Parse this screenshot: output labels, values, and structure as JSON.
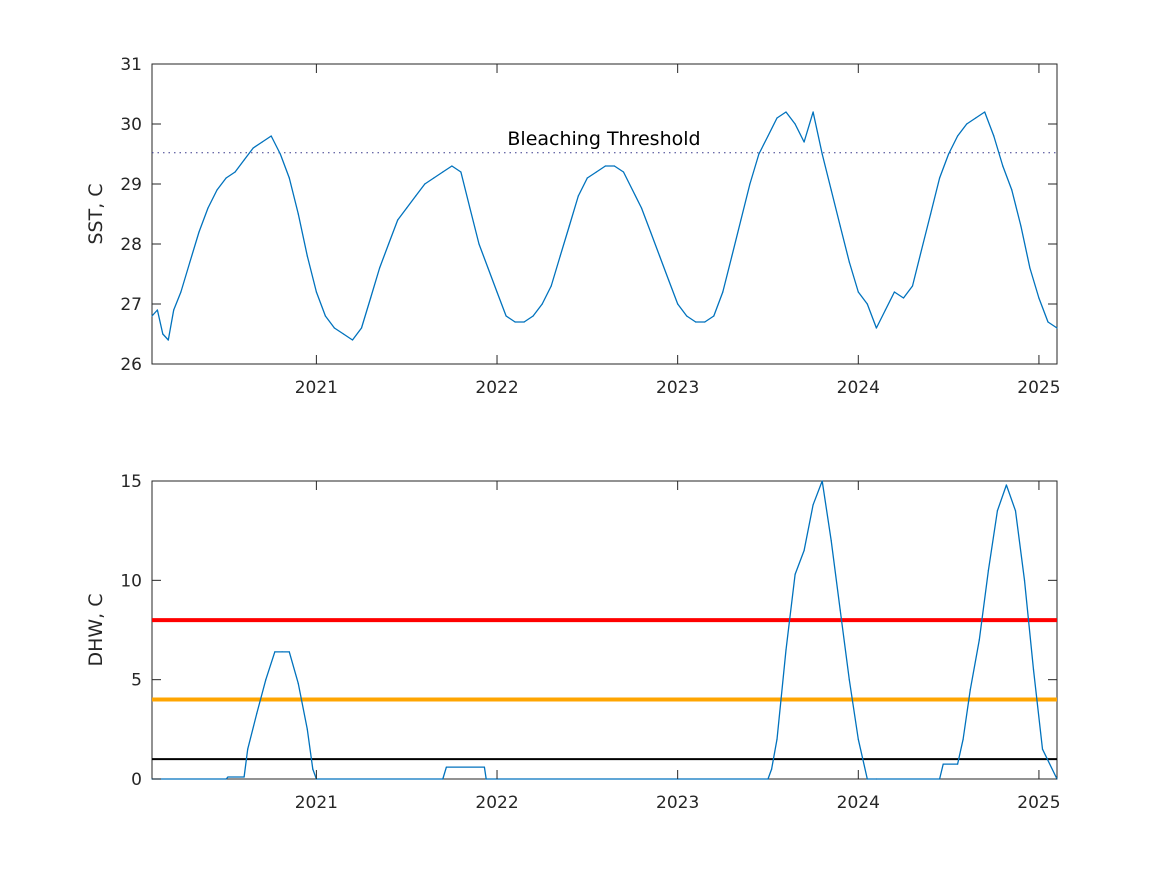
{
  "colors": {
    "sst_line": "#0072BD",
    "dhw_line": "#0072BD",
    "threshold_dotted": "#3a3a8c",
    "alert_level_2": "#ff0000",
    "alert_level_1": "#ffa500",
    "watch_level": "#000000",
    "axis": "#262626",
    "background": "#ffffff"
  },
  "chart_data": [
    {
      "type": "line",
      "ylabel": "SST, C",
      "xlabel": "",
      "xlim": [
        2020.09,
        2025.1
      ],
      "ylim": [
        26,
        31
      ],
      "x_ticks": [
        "2021",
        "2022",
        "2023",
        "2024",
        "2025"
      ],
      "y_ticks": [
        "26",
        "27",
        "28",
        "29",
        "30",
        "31"
      ],
      "annotations": [
        {
          "text": "Bleaching Threshold",
          "y": 29.52,
          "style": "dotted"
        }
      ],
      "series": [
        {
          "x": [
            2020.09,
            2020.12,
            2020.15,
            2020.18,
            2020.21,
            2020.25,
            2020.3,
            2020.35,
            2020.4,
            2020.45,
            2020.5,
            2020.55,
            2020.6,
            2020.65,
            2020.7,
            2020.75,
            2020.8,
            2020.85,
            2020.9,
            2020.95,
            2021.0,
            2021.05,
            2021.1,
            2021.15,
            2021.2,
            2021.25,
            2021.3,
            2021.35,
            2021.4,
            2021.45,
            2021.5,
            2021.55,
            2021.6,
            2021.65,
            2021.7,
            2021.75,
            2021.8,
            2021.85,
            2021.9,
            2021.95,
            2022.0,
            2022.05,
            2022.1,
            2022.15,
            2022.2,
            2022.25,
            2022.3,
            2022.35,
            2022.4,
            2022.45,
            2022.5,
            2022.55,
            2022.6,
            2022.65,
            2022.7,
            2022.75,
            2022.8,
            2022.85,
            2022.9,
            2022.95,
            2023.0,
            2023.05,
            2023.1,
            2023.15,
            2023.2,
            2023.25,
            2023.3,
            2023.35,
            2023.4,
            2023.45,
            2023.5,
            2023.55,
            2023.6,
            2023.65,
            2023.7,
            2023.75,
            2023.8,
            2023.85,
            2023.9,
            2023.95,
            2024.0,
            2024.05,
            2024.1,
            2024.15,
            2024.2,
            2024.25,
            2024.3,
            2024.35,
            2024.4,
            2024.45,
            2024.5,
            2024.55,
            2024.6,
            2024.65,
            2024.7,
            2024.75,
            2024.8,
            2024.85,
            2024.9,
            2024.95,
            2025.0,
            2025.05,
            2025.1
          ],
          "values": [
            26.8,
            26.9,
            26.5,
            26.4,
            26.9,
            27.2,
            27.7,
            28.2,
            28.6,
            28.9,
            29.1,
            29.2,
            29.4,
            29.6,
            29.7,
            29.8,
            29.5,
            29.1,
            28.5,
            27.8,
            27.2,
            26.8,
            26.6,
            26.5,
            26.4,
            26.6,
            27.1,
            27.6,
            28.0,
            28.4,
            28.6,
            28.8,
            29.0,
            29.1,
            29.2,
            29.3,
            29.2,
            28.6,
            28.0,
            27.6,
            27.2,
            26.8,
            26.7,
            26.7,
            26.8,
            27.0,
            27.3,
            27.8,
            28.3,
            28.8,
            29.1,
            29.2,
            29.3,
            29.3,
            29.2,
            28.9,
            28.6,
            28.2,
            27.8,
            27.4,
            27.0,
            26.8,
            26.7,
            26.7,
            26.8,
            27.2,
            27.8,
            28.4,
            29.0,
            29.5,
            29.8,
            30.1,
            30.2,
            30.0,
            29.7,
            30.2,
            29.5,
            28.9,
            28.3,
            27.7,
            27.2,
            27.0,
            26.6,
            26.9,
            27.2,
            27.1,
            27.3,
            27.9,
            28.5,
            29.1,
            29.5,
            29.8,
            30.0,
            30.1,
            30.2,
            29.8,
            29.3,
            28.9,
            28.3,
            27.6,
            27.1,
            26.7,
            26.6
          ]
        }
      ]
    },
    {
      "type": "line",
      "ylabel": "DHW, C",
      "xlabel": "",
      "xlim": [
        2020.09,
        2025.1
      ],
      "ylim": [
        0,
        15
      ],
      "x_ticks": [
        "2021",
        "2022",
        "2023",
        "2024",
        "2025"
      ],
      "y_ticks": [
        "0",
        "5",
        "10",
        "15"
      ],
      "reference_lines": [
        {
          "y": 8,
          "color": "red"
        },
        {
          "y": 4,
          "color": "orange"
        },
        {
          "y": 1,
          "color": "black"
        }
      ],
      "series": [
        {
          "x": [
            2020.09,
            2020.5,
            2020.51,
            2020.6,
            2020.62,
            2020.67,
            2020.72,
            2020.77,
            2020.81,
            2020.85,
            2020.9,
            2020.95,
            2020.98,
            2021.0,
            2021.7,
            2021.72,
            2021.93,
            2021.94,
            2023.5,
            2023.52,
            2023.55,
            2023.6,
            2023.65,
            2023.7,
            2023.75,
            2023.8,
            2023.85,
            2023.9,
            2023.95,
            2024.0,
            2024.05,
            2024.1,
            2024.45,
            2024.47,
            2024.55,
            2024.58,
            2024.62,
            2024.67,
            2024.72,
            2024.77,
            2024.82,
            2024.87,
            2024.92,
            2024.97,
            2025.02,
            2025.1
          ],
          "values": [
            0,
            0,
            0.1,
            0.1,
            1.5,
            3.3,
            5.0,
            6.4,
            6.4,
            6.4,
            4.8,
            2.5,
            0.5,
            0,
            0,
            0.6,
            0.6,
            0,
            0,
            0.5,
            2.0,
            6.5,
            10.3,
            11.5,
            13.8,
            15.0,
            12.0,
            8.5,
            5.0,
            2.0,
            0,
            0,
            0,
            0.75,
            0.75,
            2.0,
            4.5,
            7.0,
            10.5,
            13.5,
            14.8,
            13.5,
            10.0,
            5.5,
            1.5,
            0
          ]
        }
      ]
    }
  ]
}
